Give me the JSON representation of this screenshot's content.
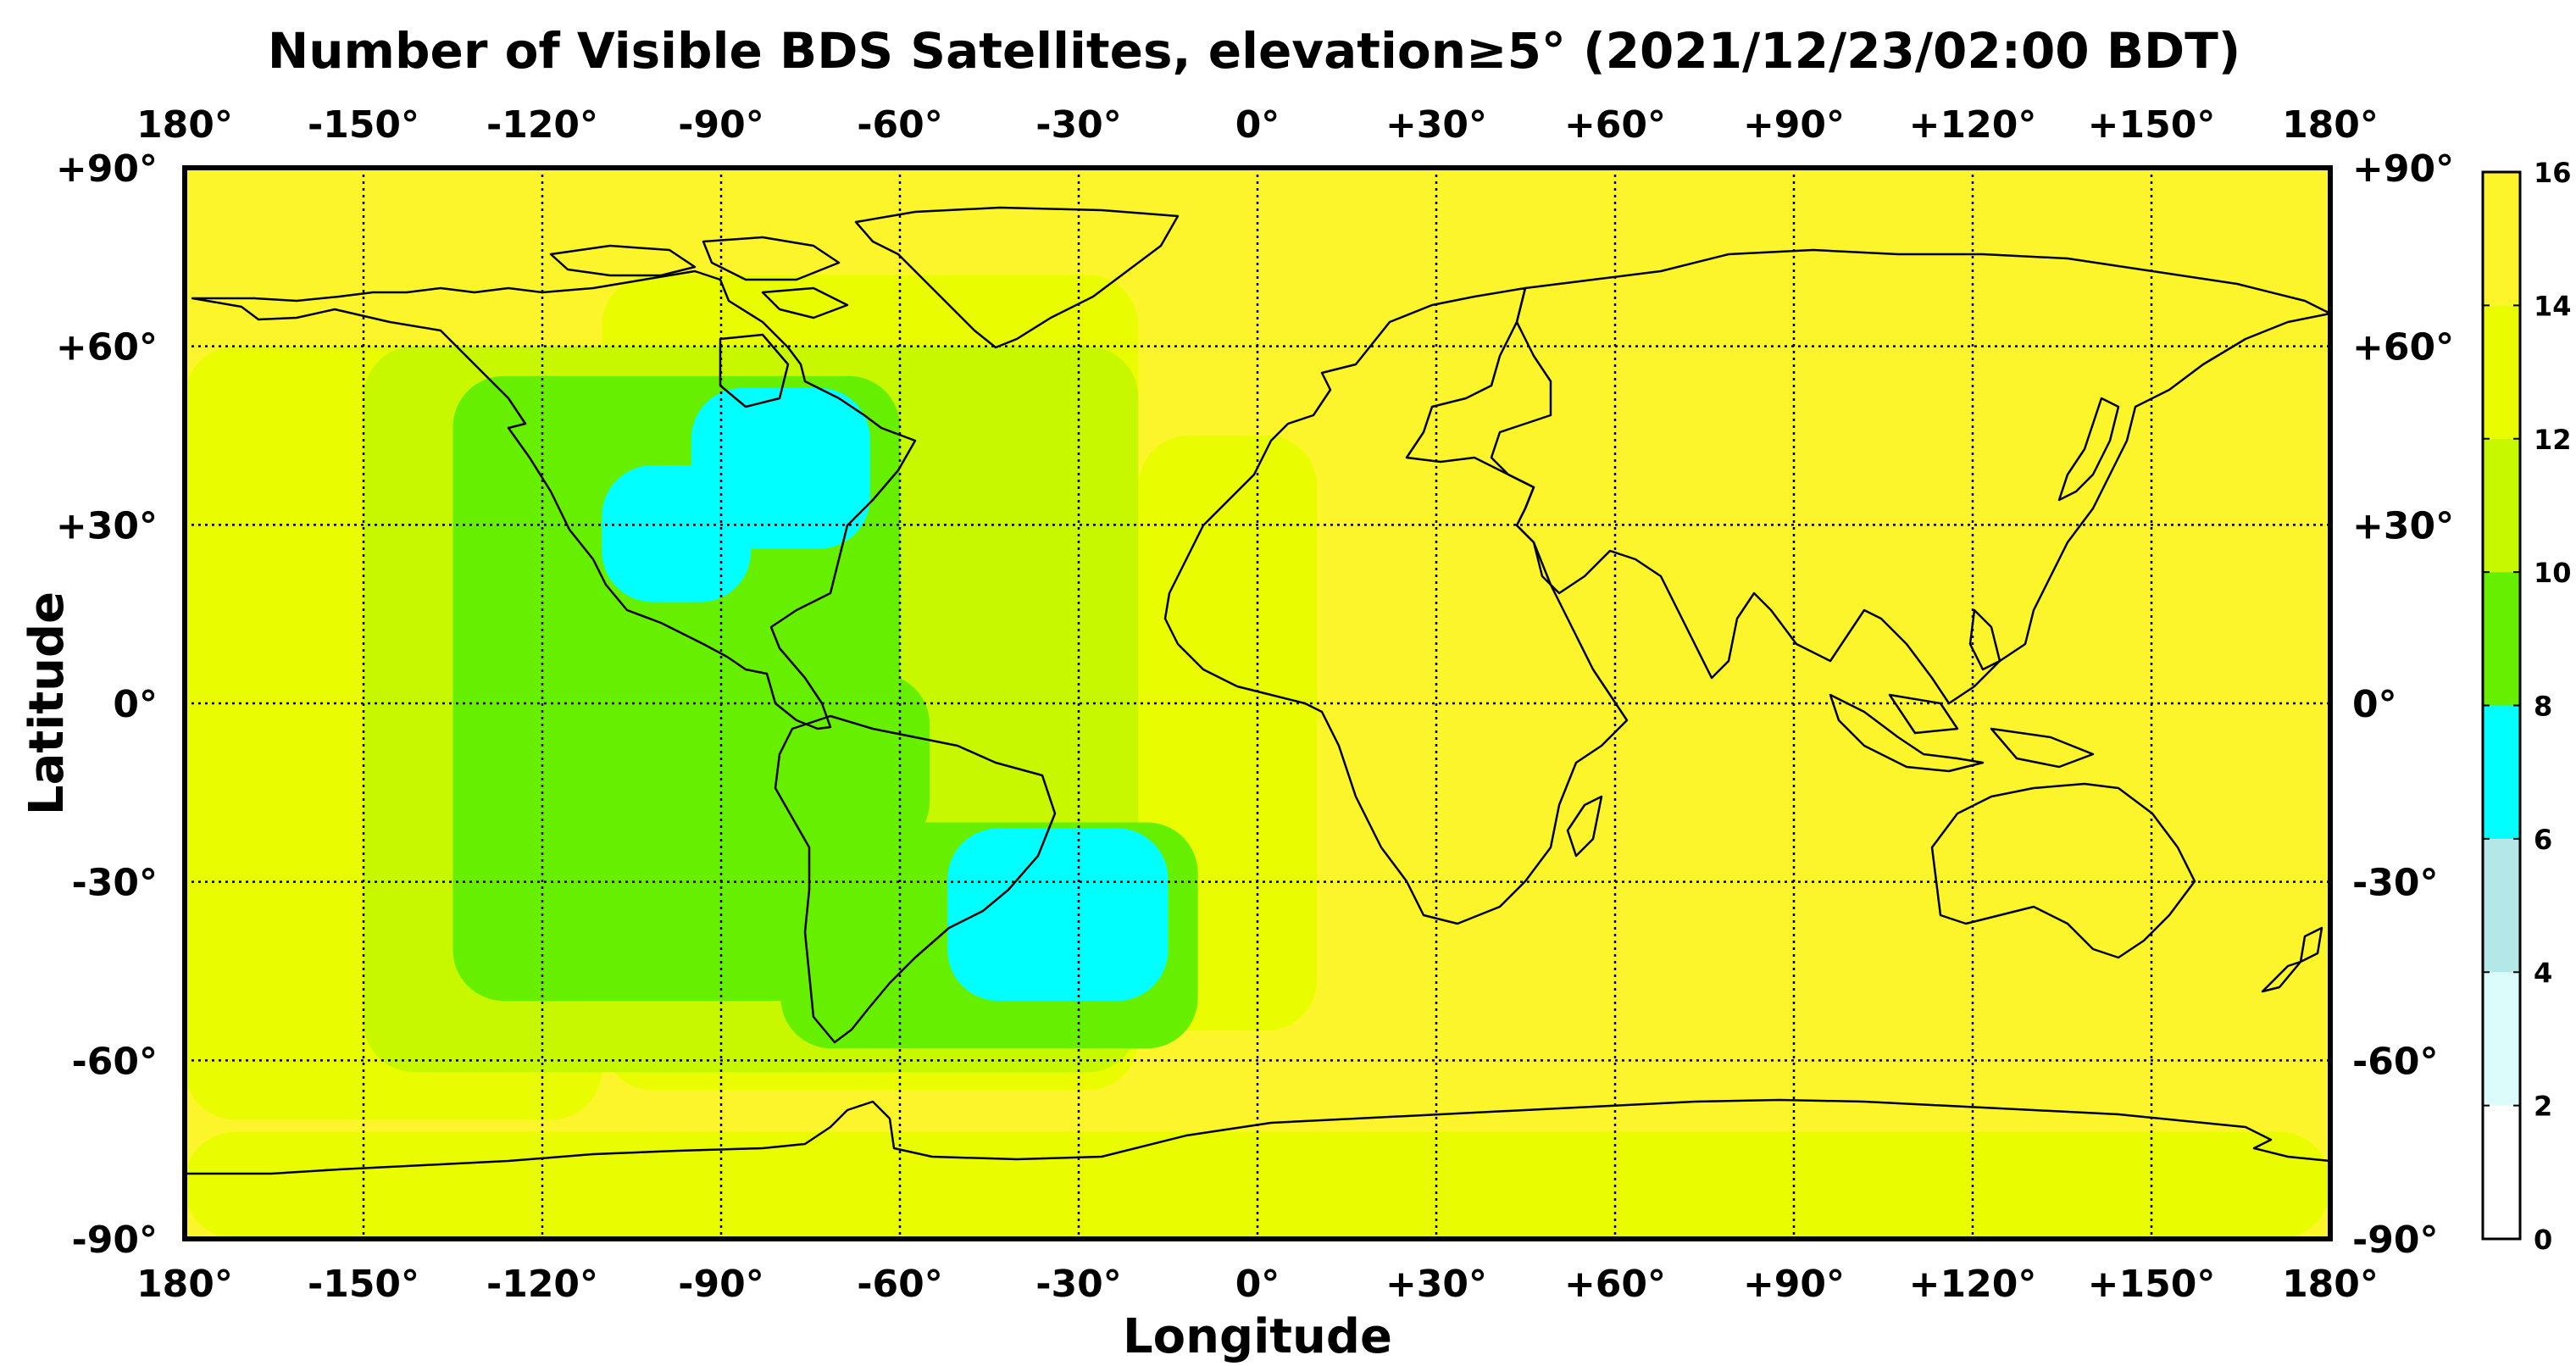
{
  "title": "Number of Visible BDS Satellites, elevation≥5° (2021/12/23/02:00 BDT)",
  "xlabel": "Longitude",
  "ylabel": "Latitude",
  "lon_ticks": [
    {
      "value": -180,
      "label": "180°"
    },
    {
      "value": -150,
      "label": "-150°"
    },
    {
      "value": -120,
      "label": "-120°"
    },
    {
      "value": -90,
      "label": "-90°"
    },
    {
      "value": -60,
      "label": "-60°"
    },
    {
      "value": -30,
      "label": "-30°"
    },
    {
      "value": 0,
      "label": "0°"
    },
    {
      "value": 30,
      "label": "+30°"
    },
    {
      "value": 60,
      "label": "+60°"
    },
    {
      "value": 90,
      "label": "+90°"
    },
    {
      "value": 120,
      "label": "+120°"
    },
    {
      "value": 150,
      "label": "+150°"
    },
    {
      "value": 180,
      "label": "180°"
    }
  ],
  "lat_ticks": [
    {
      "value": 90,
      "label": "+90°"
    },
    {
      "value": 60,
      "label": "+60°"
    },
    {
      "value": 30,
      "label": "+30°"
    },
    {
      "value": 0,
      "label": "0°"
    },
    {
      "value": -30,
      "label": "-30°"
    },
    {
      "value": -60,
      "label": "-60°"
    },
    {
      "value": -90,
      "label": "-90°"
    }
  ],
  "colorbar": {
    "ticks": [
      "0",
      "2",
      "4",
      "6",
      "8",
      "10",
      "12",
      "14",
      "16"
    ],
    "bands": [
      {
        "from": 0,
        "to": 2,
        "color": "#ffffff"
      },
      {
        "from": 2,
        "to": 4,
        "color": "#dcfcfc"
      },
      {
        "from": 4,
        "to": 6,
        "color": "#b4e8e8"
      },
      {
        "from": 6,
        "to": 8,
        "color": "#00ffff"
      },
      {
        "from": 8,
        "to": 10,
        "color": "#66f000"
      },
      {
        "from": 10,
        "to": 12,
        "color": "#c8f800"
      },
      {
        "from": 12,
        "to": 14,
        "color": "#eafd00"
      },
      {
        "from": 14,
        "to": 16,
        "color": "#fdf52c"
      }
    ]
  },
  "map_data": {
    "background_count": 15,
    "regions": [
      {
        "count": 13,
        "lon": [
          -180,
          -110
        ],
        "lat": [
          -70,
          60
        ]
      },
      {
        "count": 13,
        "lon": [
          -110,
          -20
        ],
        "lat": [
          -65,
          72
        ]
      },
      {
        "count": 13,
        "lon": [
          -20,
          10
        ],
        "lat": [
          -55,
          45
        ]
      },
      {
        "count": 13,
        "lon": [
          -180,
          180
        ],
        "lat": [
          -90,
          -72
        ]
      },
      {
        "count": 11,
        "lon": [
          -150,
          -20
        ],
        "lat": [
          -62,
          60
        ]
      },
      {
        "count": 9,
        "lon": [
          -135,
          -60
        ],
        "lat": [
          -50,
          55
        ]
      },
      {
        "count": 9,
        "lon": [
          -80,
          -10
        ],
        "lat": [
          -58,
          -20
        ]
      },
      {
        "count": 9,
        "lon": [
          -110,
          -55
        ],
        "lat": [
          -25,
          5
        ]
      },
      {
        "count": 7,
        "lon": [
          -110,
          -85
        ],
        "lat": [
          17,
          40
        ]
      },
      {
        "count": 7,
        "lon": [
          -95,
          -65
        ],
        "lat": [
          26,
          53
        ]
      },
      {
        "count": 7,
        "lon": [
          -52,
          -15
        ],
        "lat": [
          -50,
          -21
        ]
      }
    ]
  }
}
